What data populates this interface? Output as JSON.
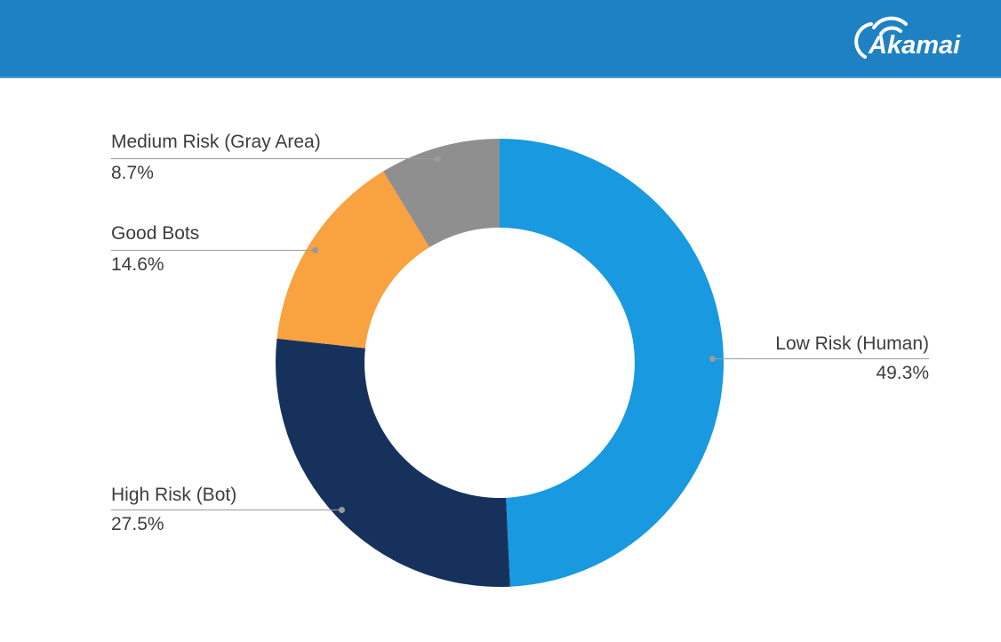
{
  "header": {
    "background_color": "#1e81c4",
    "logo_text": "Akamai"
  },
  "chart_data": {
    "type": "pie",
    "donut": true,
    "unit": "%",
    "direction": "clockwise",
    "start_angle_deg": 0,
    "legend_position": "callout-labels",
    "title": "",
    "segments": [
      {
        "label": "Low Risk (Human)",
        "value": 49.3,
        "display": "49.3%",
        "color": "#1899e0"
      },
      {
        "label": "High Risk (Bot)",
        "value": 27.5,
        "display": "27.5%",
        "color": "#16325c"
      },
      {
        "label": "Good Bots",
        "value": 14.6,
        "display": "14.6%",
        "color": "#f9a240"
      },
      {
        "label": "Medium Risk (Gray Area)",
        "value": 8.7,
        "display": "8.7%",
        "color": "#8f8f8f"
      }
    ]
  },
  "styles": {
    "label_text_color": "#3d3d3d",
    "leader_line_color": "#9b9b9b",
    "page_background": "#ffffff",
    "hole_color": "#ffffff"
  }
}
